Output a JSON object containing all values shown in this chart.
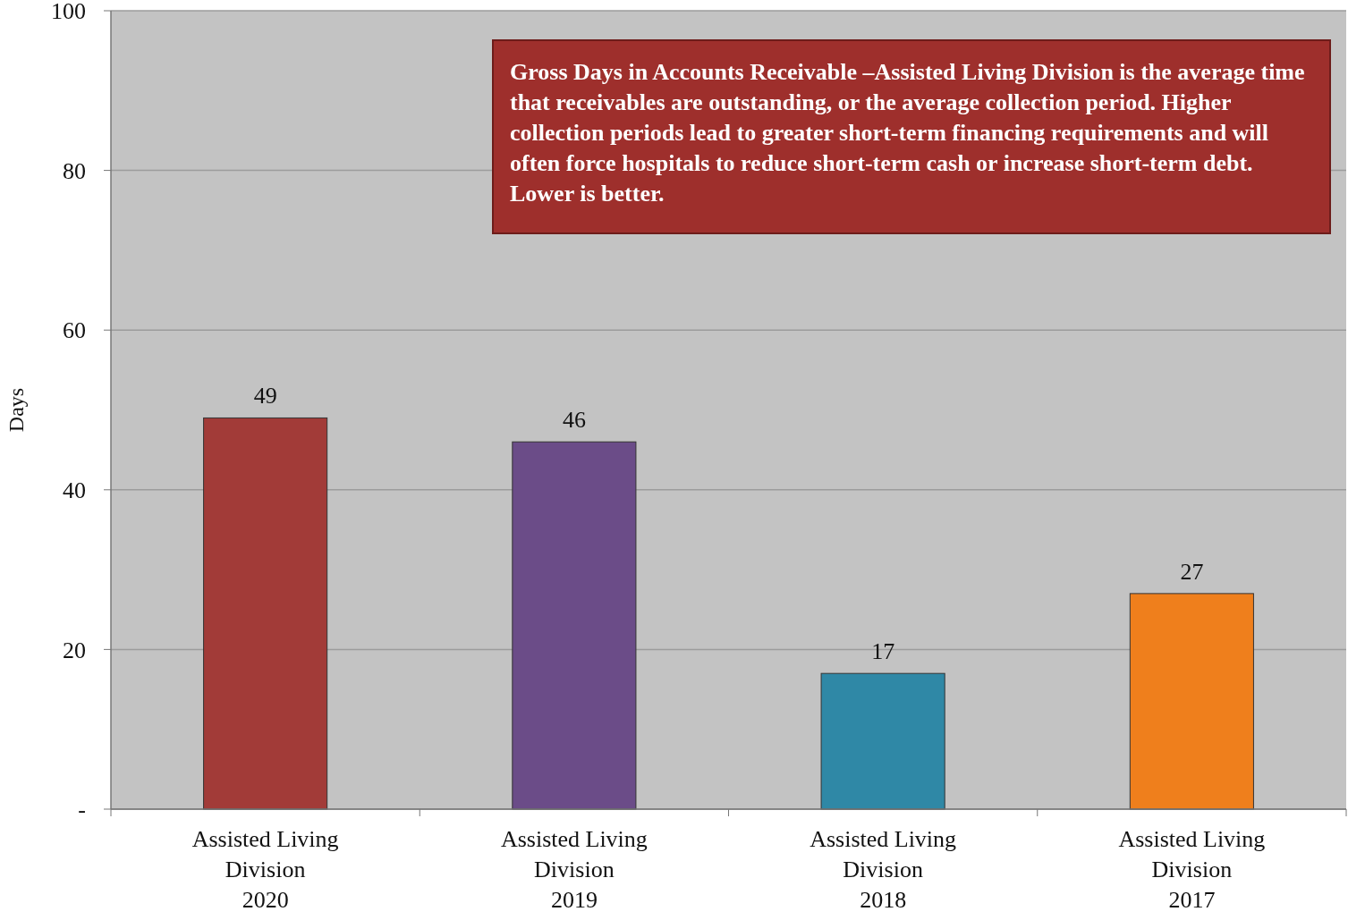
{
  "chart_data": {
    "type": "bar",
    "ylabel": "Days",
    "categories": [
      "Assisted Living\nDivision\n2020",
      "Assisted Living\nDivision\n2019",
      "Assisted Living\nDivision\n2018",
      "Assisted Living\nDivision\n2017"
    ],
    "values": [
      49,
      46,
      17,
      27
    ],
    "colors": [
      "#a23b38",
      "#6b4c88",
      "#2f88a6",
      "#ef7f1c"
    ],
    "ylim": [
      0,
      100
    ],
    "yticks": [
      {
        "value": 0,
        "label": "-"
      },
      20,
      40,
      60,
      80,
      100
    ],
    "grid": "y",
    "data_labels": true,
    "annotations": [
      "Gross Days in Accounts Receivable –Assisted Living Division is the average time that receivables are outstanding, or the average collection period. Higher collection periods lead to greater short-term financing requirements and will often force hospitals to reduce short-term cash or increase short-term debt. Lower is better."
    ]
  }
}
